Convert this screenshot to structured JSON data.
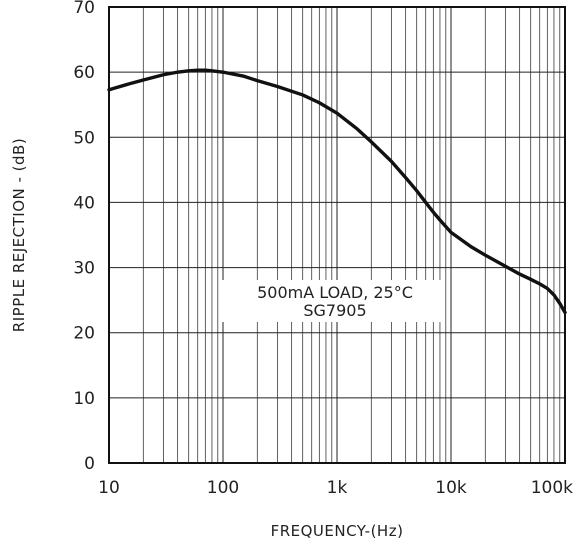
{
  "chart_data": {
    "type": "line",
    "title": "",
    "xlabel": "FREQUENCY-(Hz)",
    "ylabel": "RIPPLE REJECTION - (dB)",
    "x_scale": "log",
    "xlim": [
      10,
      100000
    ],
    "ylim": [
      0,
      70
    ],
    "x_ticks": [
      10,
      100,
      1000,
      10000,
      100000
    ],
    "x_tick_labels": [
      "10",
      "100",
      "1k",
      "10k",
      "100k"
    ],
    "y_ticks": [
      0,
      10,
      20,
      30,
      40,
      50,
      60,
      70
    ],
    "y_tick_labels": [
      "0",
      "10",
      "20",
      "30",
      "40",
      "50",
      "60",
      "70"
    ],
    "grid": true,
    "annotation": {
      "line1": "500mA LOAD, 25°C",
      "line2": "SG7905"
    },
    "series": [
      {
        "x": [
          10,
          15,
          20,
          30,
          40,
          50,
          60,
          70,
          80,
          100,
          150,
          200,
          300,
          500,
          700,
          1000,
          1500,
          2000,
          3000,
          4000,
          5000,
          6000,
          7000,
          8000,
          10000,
          15000,
          20000,
          30000,
          40000,
          50000,
          60000,
          70000,
          80000,
          90000,
          100000
        ],
        "y": [
          57.3,
          58.2,
          58.8,
          59.6,
          60.0,
          60.2,
          60.3,
          60.3,
          60.2,
          60.0,
          59.4,
          58.7,
          57.8,
          56.5,
          55.3,
          53.7,
          51.3,
          49.3,
          46.3,
          43.8,
          41.8,
          40.0,
          38.5,
          37.3,
          35.4,
          33.2,
          31.9,
          30.2,
          29.0,
          28.2,
          27.5,
          26.8,
          25.8,
          24.5,
          23.1
        ]
      }
    ]
  }
}
